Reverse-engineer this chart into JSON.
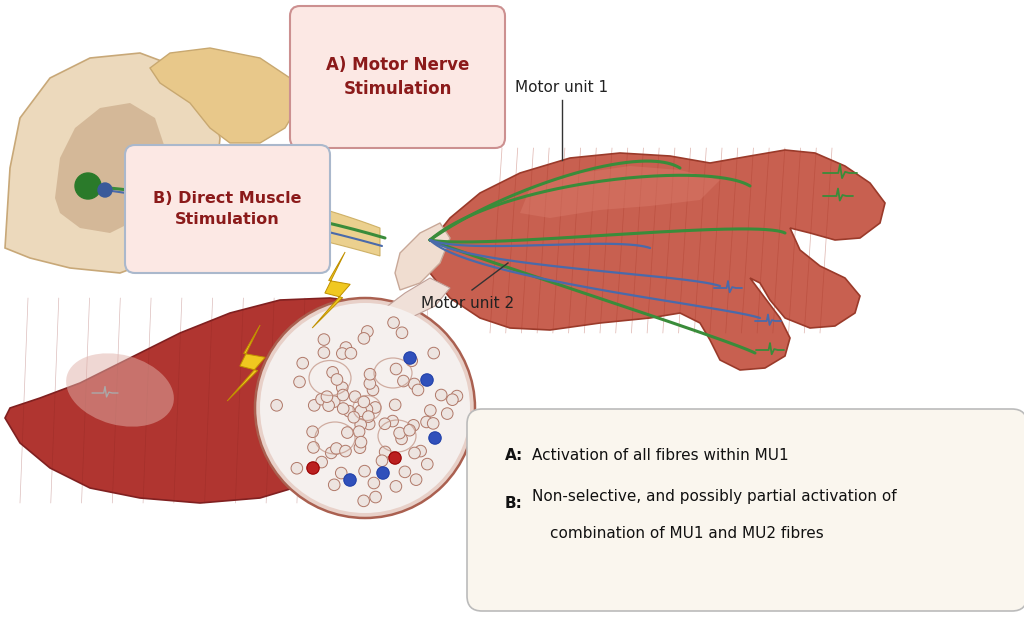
{
  "bg_color": "#ffffff",
  "label_A_text": "A) Motor Nerve\nStimulation",
  "label_B_text": "B) Direct Muscle\nStimulation",
  "label_A_box_facecolor": "#fce8e6",
  "label_A_box_edgecolor": "#cc8888",
  "label_B_box_facecolor": "#fce8e6",
  "label_B_box_edgecolor": "#aab8cc",
  "label_A_textcolor": "#8b1a1a",
  "label_B_textcolor": "#8b1a1a",
  "motor_unit1_label": "Motor unit 1",
  "motor_unit2_label": "Motor unit 2",
  "legend_box_facecolor": "#faf6ee",
  "legend_box_edgecolor": "#bbbbbb",
  "green_color": "#3a8c3a",
  "blue_color": "#4a6aaa",
  "muscle_main": "#c05545",
  "muscle_light": "#d4897a",
  "muscle_dark": "#a03530",
  "nerve_sheath": "#e8c87a",
  "spine_outer": "#e8c88a",
  "spine_inner": "#f5e8c0",
  "lightning_color": "#f0c820",
  "fiber_bg": "#f8f2ef",
  "fiber_fill": "#ede0dc",
  "fiber_edge": "#c07868"
}
